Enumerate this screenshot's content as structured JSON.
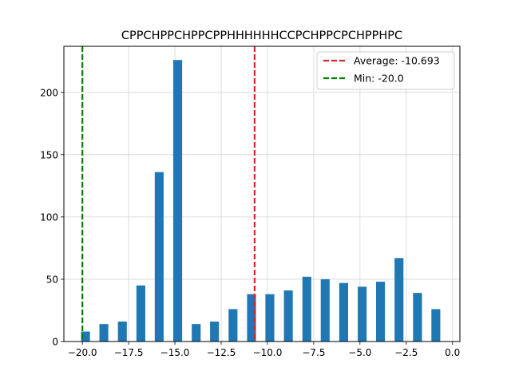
{
  "chart_data": {
    "type": "bar",
    "title": "CPPCHPPCHPPCPPHHHHHHCCPCHPPCPCHPPHPC",
    "xlabel": "",
    "ylabel": "",
    "xlim": [
      -21.0,
      0.4
    ],
    "ylim": [
      0,
      237
    ],
    "grid": true,
    "bar_width": 0.48,
    "bar_color": "#1f77b4",
    "x_ticks": [
      -20.0,
      -17.5,
      -15.0,
      -12.5,
      -10.0,
      -7.5,
      -5.0,
      -2.5,
      0.0
    ],
    "x_tick_labels": [
      "−20.0",
      "−17.5",
      "−15.0",
      "−12.5",
      "−10.0",
      "−7.5",
      "−5.0",
      "−2.5",
      "0.0"
    ],
    "y_ticks": [
      0,
      50,
      100,
      150,
      200
    ],
    "y_tick_labels": [
      "0",
      "50",
      "100",
      "150",
      "200"
    ],
    "bins": [
      {
        "x": -19.83,
        "count": 8
      },
      {
        "x": -18.84,
        "count": 14
      },
      {
        "x": -17.84,
        "count": 16
      },
      {
        "x": -16.84,
        "count": 45
      },
      {
        "x": -15.85,
        "count": 136
      },
      {
        "x": -14.85,
        "count": 226
      },
      {
        "x": -13.85,
        "count": 14
      },
      {
        "x": -12.86,
        "count": 16
      },
      {
        "x": -11.86,
        "count": 26
      },
      {
        "x": -10.86,
        "count": 38
      },
      {
        "x": -9.87,
        "count": 38
      },
      {
        "x": -8.87,
        "count": 41
      },
      {
        "x": -7.87,
        "count": 52
      },
      {
        "x": -6.88,
        "count": 50
      },
      {
        "x": -5.88,
        "count": 47
      },
      {
        "x": -4.88,
        "count": 44
      },
      {
        "x": -3.89,
        "count": 48
      },
      {
        "x": -2.89,
        "count": 67
      },
      {
        "x": -1.89,
        "count": 39
      },
      {
        "x": -0.9,
        "count": 26
      }
    ],
    "reference_lines": [
      {
        "name": "Average: -10.693",
        "x": -10.693,
        "color": "#d62728",
        "style": "dashed"
      },
      {
        "name": "Min: -20.0",
        "x": -20.0,
        "color": "#008000",
        "style": "dashed"
      }
    ],
    "legend": {
      "placement": "top-right",
      "entries": [
        "Average: -10.693",
        "Min: -20.0"
      ]
    }
  }
}
